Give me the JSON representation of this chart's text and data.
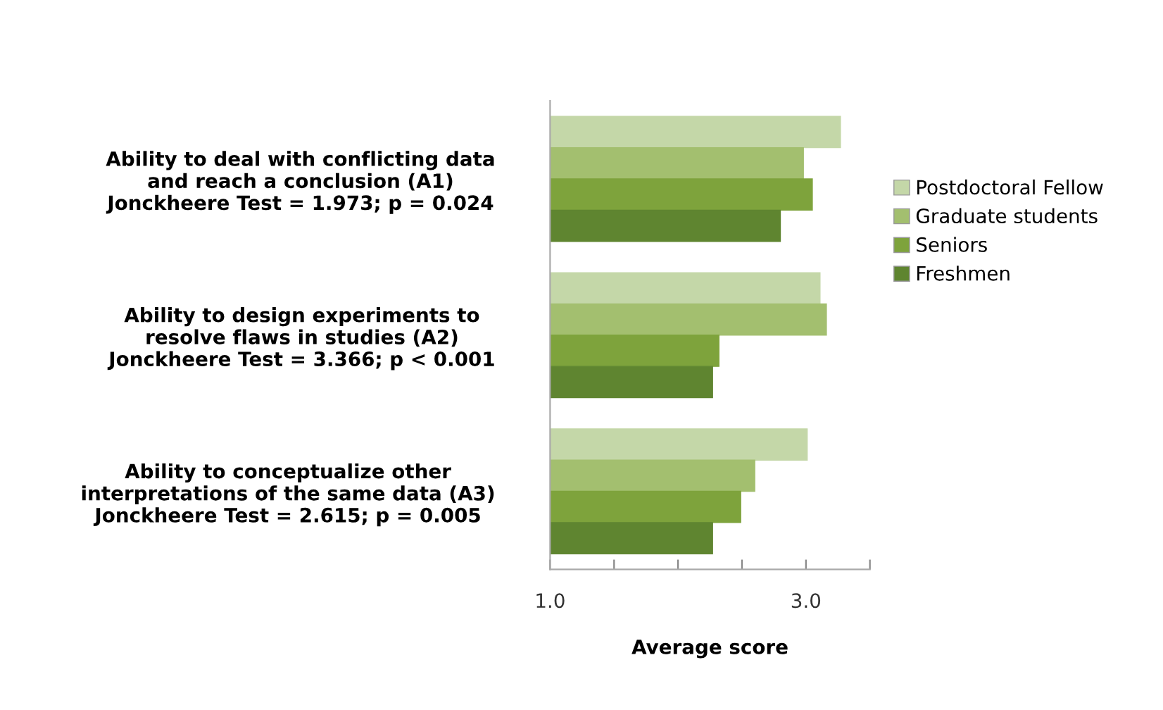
{
  "chart_data": {
    "type": "bar",
    "orientation": "horizontal",
    "xlabel": "Average score",
    "categories": [
      "Ability to deal with conflicting data\nand reach a conclusion (A1)\nJonckheere Test = 1.973; p = 0.024",
      "Ability to design experiments to\nresolve flaws in studies (A2)\nJonckheere Test = 3.366; p < 0.001",
      "Ability to conceptualize other\ninterpretations of the same data (A3)\nJonckheere Test = 2.615; p = 0.005"
    ],
    "series": [
      {
        "name": "Postdoctoral Fellow",
        "color": "#c4d7a8",
        "values": [
          3.27,
          3.11,
          3.01
        ]
      },
      {
        "name": "Graduate students",
        "color": "#a3bf6f",
        "values": [
          2.98,
          3.16,
          2.6
        ]
      },
      {
        "name": "Seniors",
        "color": "#7ea33c",
        "values": [
          3.05,
          2.32,
          2.49
        ]
      },
      {
        "name": "Freshmen",
        "color": "#5f8530",
        "values": [
          2.8,
          2.27,
          2.27
        ]
      }
    ],
    "xlim": [
      1.0,
      3.5
    ],
    "xticks": [
      {
        "value": 1.0,
        "label": "1.0"
      },
      {
        "value": 1.5,
        "label": null
      },
      {
        "value": 2.0,
        "label": null
      },
      {
        "value": 2.5,
        "label": null
      },
      {
        "value": 3.0,
        "label": "3.0"
      },
      {
        "value": 3.5,
        "label": null
      }
    ],
    "grid": false,
    "legend": "right"
  }
}
